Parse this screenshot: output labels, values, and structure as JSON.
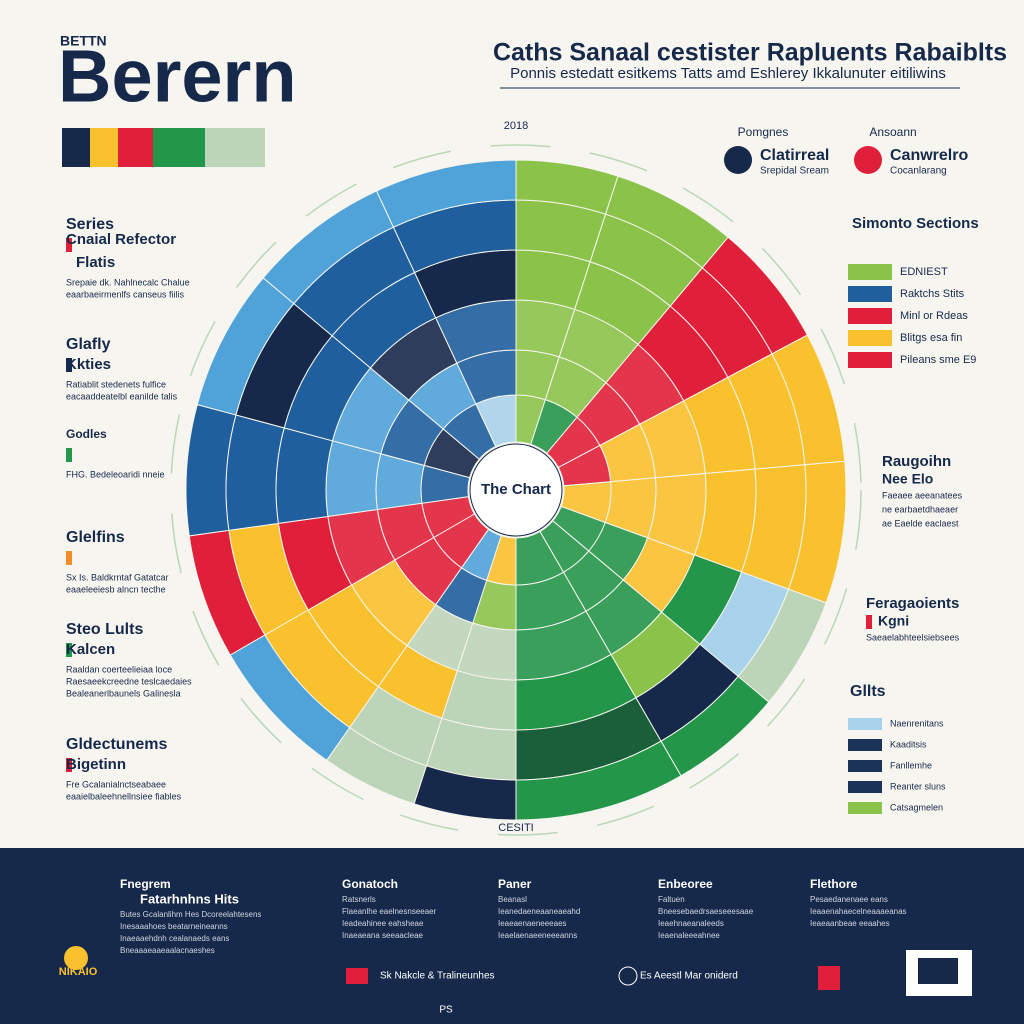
{
  "header": {
    "kicker": "BETTN",
    "title": "Berern",
    "right_title": "Caths Sanaal cestister Rapluents Rabaiblts",
    "right_subtitle": "Ponnis estedatt esitkems Tatts amd Eshlerey Ikkalunuter eitiliwins"
  },
  "chart": {
    "year": "2018",
    "center": "The Chart",
    "bottom": "CESITI"
  },
  "left_blocks": [
    {
      "title": "Series",
      "subtitle": "Cnaial Refector",
      "label": "Flatis",
      "lines": [
        "Srepaie dk. Nahlnecalc Chalue",
        "eaarbaeirmenlfs canseus fiilis"
      ]
    },
    {
      "title": "Glafly",
      "subtitle": "Kkties",
      "label": "",
      "lines": [
        "Ratiablit stedenets fulfice",
        "eacaaddeatelbl eanilde talis"
      ]
    },
    {
      "title": "Godles",
      "subtitle": "",
      "label": "",
      "lines": [
        "FHG. Bedeleoaridi nneie"
      ]
    },
    {
      "title": "Glelfins",
      "subtitle": "",
      "label": "",
      "lines": [
        "Sx Is. Baldkrntaf Gatatcar",
        "eaaeleeiesb alncn tecthe"
      ]
    },
    {
      "title": "Steo Lults",
      "subtitle": "Kalcen",
      "label": "",
      "lines": [
        "Raaldan coerteelieiaa loce",
        "Raesaeekcreedne teslcaedaies",
        "Bealeanerlbaunels Galinesla"
      ]
    },
    {
      "title": "Gldectunems",
      "subtitle": "Bigetinn",
      "label": "",
      "lines": [
        "Fre Gcalanialnctseabaee",
        "eaaielbaleehnellnsiee fiables"
      ]
    }
  ],
  "legend": [
    {
      "title": "Pomgnes",
      "name": "Clatirreal",
      "note": "Srepidal Sream"
    },
    {
      "title": "Ansoann",
      "name": "Canwrelro",
      "note": "Cocanlarang"
    }
  ],
  "sections": {
    "title": "Simonto Sections",
    "items": [
      "EDNIEST",
      "Raktchs Stits",
      "Minl or Rdeas",
      "Blitgs esa fin",
      "Pileans sme E9"
    ]
  },
  "right_blocks": [
    {
      "title": "Raugoihn",
      "subtitle": "Nee Elo",
      "lines": [
        "Faeaee aeeanatees",
        "ne earbaetdhaeaer",
        "ae Eaelde eaclaest"
      ]
    },
    {
      "title": "Feragaoients",
      "subtitle": "Kgni",
      "lines": [
        "Saeaelabhteelsiebsees"
      ]
    }
  ],
  "gllts": {
    "title": "Gllts",
    "items": [
      "Naenrenitans",
      "Kaaditsis",
      "Fanllemhe",
      "Reanter sluns",
      "Catsagmelen"
    ]
  },
  "footer": {
    "columns": [
      {
        "title": "Fnegrem",
        "subtitle": "Fatarhnhns Hits",
        "lines": [
          "Butes Gcalanlihm Hes Dcoreelahtesens",
          "Inesaaahoes beatarneineanns",
          "Inaeaaehdnh cealanaeds eans",
          "Bneaaaeaaeaalacnaeshes"
        ]
      },
      {
        "title": "Gonatoch",
        "subtitle": "",
        "lines": [
          "Ratsnerls",
          "Flaeanlhe eaelnesnseeaer",
          "Ieadeahinee eahsheae",
          "Inaeaeana seeaacleae"
        ]
      },
      {
        "title": "Paner",
        "subtitle": "",
        "lines": [
          "Beanasl",
          "Ieanedaeneaaneaeahd",
          "Ieaeaenaeneeeaes",
          "Ieaelaenaeeneeeanns"
        ]
      },
      {
        "title": "Enbeoree",
        "subtitle": "",
        "lines": [
          "Faltuen",
          "Bneesebaedrsaeseeesaae",
          "Ieaehnaeanaleeds",
          "Ieaenaleeeahnee"
        ]
      },
      {
        "title": "Flethore",
        "subtitle": "",
        "lines": [
          "Pesaedanenaee eans",
          "Ieaaenahaecelneaaaeanas",
          "Ieaeaanbeae eeaahes"
        ]
      }
    ],
    "notes": [
      "Sk Nakcle & Tralineunhes",
      "Es Aeestl Mar oniderd"
    ],
    "logo": "NIKAIO",
    "page": "PS"
  }
}
